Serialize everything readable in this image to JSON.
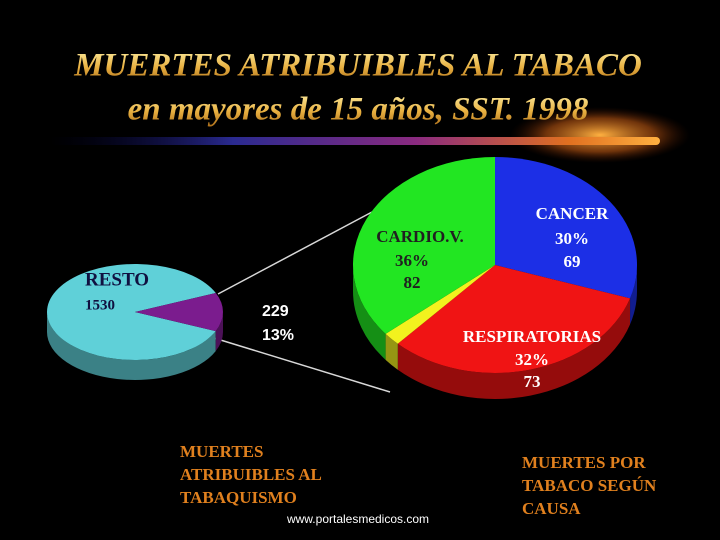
{
  "title": "MUERTES ATRIBUIBLES AL TABACO",
  "subtitle": "en mayores de 15 años, SST. 1998",
  "source": "www.portalesmedicos.com",
  "chart_data": [
    {
      "type": "pie",
      "categories": [
        "RESTO",
        null
      ],
      "values": [
        1530,
        229
      ],
      "percent_labels": [
        null,
        "13%"
      ],
      "colors": [
        "#5fd0d8",
        "#7b1c8e"
      ],
      "caption": [
        "MUERTES",
        "ATRIBUIBLES AL",
        "TABAQUISMO"
      ]
    },
    {
      "type": "pie",
      "categories": [
        "CANCER",
        "RESPIRATORIAS",
        null,
        "CARDIO.V."
      ],
      "values": [
        30,
        32,
        2,
        36
      ],
      "value_labels": [
        "30%",
        "32%",
        null,
        "36%"
      ],
      "counts": [
        69,
        73,
        null,
        82
      ],
      "colors": [
        "#1c2fe6",
        "#f01414",
        "#f2f21e",
        "#22e622"
      ],
      "caption": [
        "MUERTES POR",
        "TABACO SEGÚN",
        "CAUSA"
      ]
    }
  ]
}
